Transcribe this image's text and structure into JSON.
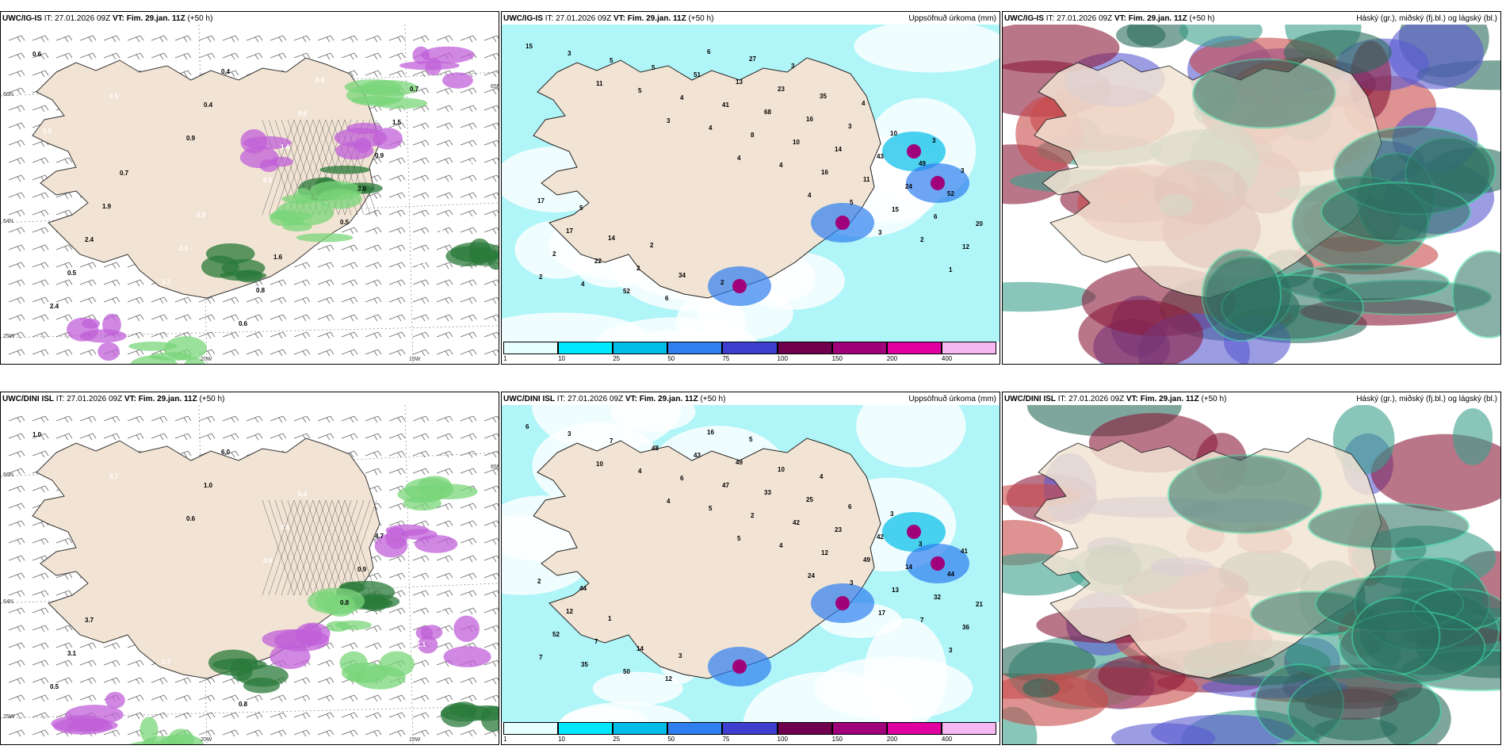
{
  "panels": [
    {
      "id": "p1",
      "model": "UWC/IG-IS",
      "it_label": "IT:",
      "it": "27.01.2026 09Z",
      "vt_label": "VT:",
      "vt": "Fim. 29.jan. 11Z",
      "lead": "(+50 h)",
      "right": "",
      "type": "precip",
      "labels": [
        "0.6",
        "0.5",
        "0.9",
        "0.3",
        "0.5",
        "1.4",
        "2.4",
        "0.7",
        "0.4",
        "1.4",
        "3.0",
        "0.8",
        "0.5",
        "1.7",
        "0.4",
        "0.6",
        "0.9",
        "2.9",
        "2.4",
        "1.1",
        "0.6",
        "0.9",
        "1.5",
        "1.0",
        "1.9",
        "2.3",
        "0.8",
        "0.6",
        "0.7",
        "0.5",
        "0.7",
        "0.9",
        "1.6"
      ],
      "ticks": {
        "lat_top": "66N",
        "lat_mid": "64N",
        "lat_bot": "65N",
        "lon_left": "20W",
        "lon_right": "15W",
        "lat_left_low": "25W"
      }
    },
    {
      "id": "p2",
      "model": "UWC/IG-IS",
      "it_label": "IT:",
      "it": "27.01.2026 09Z",
      "vt_label": "VT:",
      "vt": "Fim. 29.jan. 11Z",
      "lead": "(+50 h)",
      "right": "Uppsöfnuð úrkoma (mm)",
      "type": "accum",
      "labels": [
        "15",
        "11",
        "3",
        "4",
        "4",
        "3",
        "1",
        "3",
        "5",
        "4",
        "4",
        "5",
        "2",
        "2",
        "5",
        "4",
        "8",
        "16",
        "15",
        "12",
        "4",
        "5",
        "41",
        "10",
        "11",
        "6",
        "2",
        "52",
        "51",
        "68",
        "14",
        "24",
        "20",
        "22",
        "6",
        "13",
        "16",
        "43",
        "52",
        "17",
        "2",
        "6",
        "23",
        "3",
        "49",
        "17",
        "14",
        "34",
        "27",
        "35",
        "10",
        "3",
        "5",
        "2",
        "2",
        "3",
        "4",
        "3"
      ],
      "legend": [
        "1",
        "10",
        "25",
        "50",
        "75",
        "100",
        "150",
        "200",
        "400"
      ]
    },
    {
      "id": "p3",
      "model": "UWC/IG-IS",
      "it_label": "IT:",
      "it": "27.01.2026 09Z",
      "vt_label": "VT:",
      "vt": "Fim. 29.jan. 11Z",
      "lead": "(+50 h)",
      "right": "Háský (gr.), miðský (fj.bl.) og lágský (bl.)",
      "type": "cloud"
    },
    {
      "id": "p4",
      "model": "UWC/DINI ISL",
      "it_label": "IT:",
      "it": "27.01.2026 09Z",
      "vt_label": "VT:",
      "vt": "Fim. 29.jan. 11Z",
      "lead": "(+50 h)",
      "right": "",
      "type": "precip",
      "labels": [
        "1.0",
        "3.7",
        "0.6",
        "0.9",
        "0.8",
        "1.1",
        "0.5",
        "0.7",
        "1.0",
        "0.6",
        "0.9",
        "2.7",
        "3.1",
        "6.3",
        "6.0",
        "6.4",
        "4.7",
        "3.1",
        "3.7",
        "0.7",
        "0.8"
      ],
      "ticks": {
        "lat_top": "66N",
        "lat_mid": "64N",
        "lat_bot": "65N",
        "lon_left": "20W",
        "lon_right": "15W",
        "lat_left_low": "25W"
      }
    },
    {
      "id": "p5",
      "model": "UWC/DINI ISL",
      "it_label": "IT:",
      "it": "27.01.2026 09Z",
      "vt_label": "VT:",
      "vt": "Fim. 29.jan. 11Z",
      "lead": "(+50 h)",
      "right": "Uppsöfnuð úrkoma (mm)",
      "type": "accum",
      "labels": [
        "6",
        "10",
        "4",
        "5",
        "24",
        "17",
        "3",
        "3",
        "4",
        "5",
        "4",
        "3",
        "7",
        "7",
        "7",
        "6",
        "2",
        "12",
        "13",
        "36",
        "35",
        "48",
        "47",
        "42",
        "49",
        "32",
        "52",
        "50",
        "43",
        "33",
        "23",
        "14",
        "21",
        "7",
        "12",
        "49",
        "25",
        "42",
        "44",
        "12",
        "14",
        "16",
        "10",
        "6",
        "3",
        "2",
        "1",
        "3",
        "5",
        "4",
        "3",
        "41",
        "44"
      ],
      "legend": [
        "1",
        "10",
        "25",
        "50",
        "75",
        "100",
        "150",
        "200",
        "400"
      ]
    },
    {
      "id": "p6",
      "model": "UWC/DINI ISL",
      "it_label": "IT:",
      "it": "27.01.2026 09Z",
      "vt_label": "VT:",
      "vt": "Fim. 29.jan. 11Z",
      "lead": "(+50 h)",
      "right": "Háský (gr.), miðský (fj.bl.) og lágský (bl.)",
      "type": "cloud"
    }
  ],
  "colors": {
    "land": "#f2e4d4",
    "legend": [
      "#e6ffff",
      "#00e8ff",
      "#00bde8",
      "#2f7ff0",
      "#3f3fcf",
      "#70004d",
      "#a0007a",
      "#e000a0",
      "#f5b8f0"
    ],
    "sea_accum": "#b0f5f8"
  }
}
